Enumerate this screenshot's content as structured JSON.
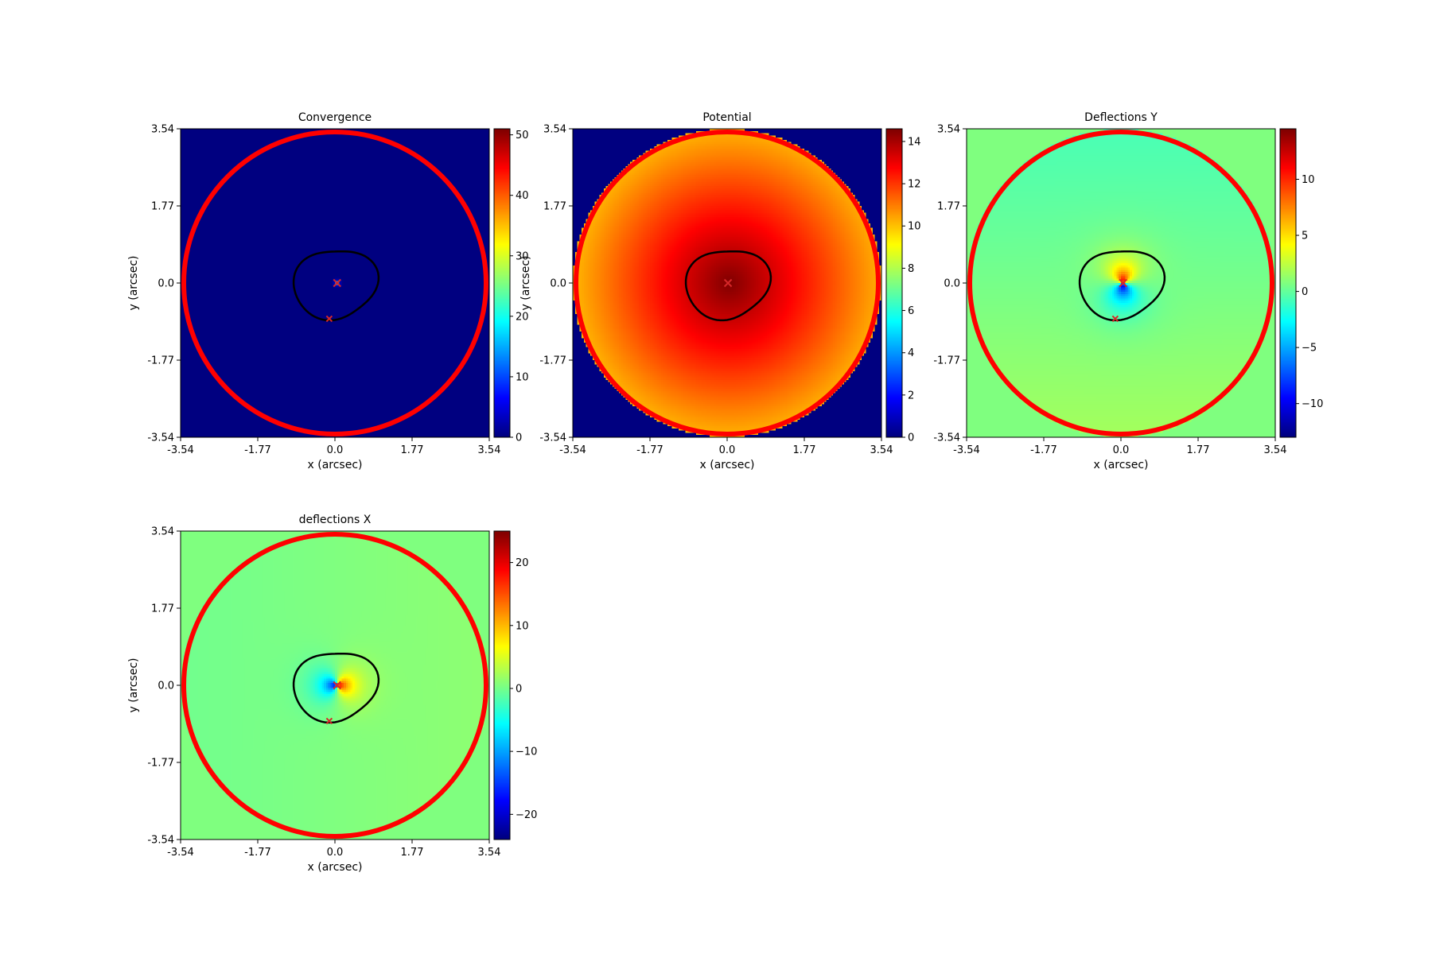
{
  "chart_data": [
    {
      "type": "heatmap",
      "title": "Convergence",
      "xlabel": "x (arcsec)",
      "ylabel": "y (arcsec)",
      "xlim": [
        -3.54,
        3.54
      ],
      "ylim": [
        -3.54,
        3.54
      ],
      "xticks": [
        "-3.54",
        "-1.77",
        "0.0",
        "1.77",
        "3.54"
      ],
      "yticks": [
        "3.54",
        "1.77",
        "0.0",
        "-1.77",
        "-3.54"
      ],
      "colorbar": {
        "min": 0,
        "max": 51,
        "ticks": [
          "0",
          "10",
          "20",
          "30",
          "40",
          "50"
        ],
        "tick_values": [
          0,
          10,
          20,
          30,
          40,
          50
        ]
      },
      "colormap": "jet",
      "field": "convergence",
      "background": "#000080",
      "markers": [
        {
          "x": 0.05,
          "y": 0.0
        },
        {
          "x": -0.13,
          "y": -0.82
        }
      ]
    },
    {
      "type": "heatmap",
      "title": "Potential",
      "xlabel": "x (arcsec)",
      "ylabel": "y (arcsec)",
      "xlim": [
        -3.54,
        3.54
      ],
      "ylim": [
        -3.54,
        3.54
      ],
      "xticks": [
        "-3.54",
        "-1.77",
        "0.0",
        "1.77",
        "3.54"
      ],
      "yticks": [
        "3.54",
        "1.77",
        "0.0",
        "-1.77",
        "-3.54"
      ],
      "colorbar": {
        "min": 0,
        "max": 14.6,
        "ticks": [
          "0",
          "2",
          "4",
          "6",
          "8",
          "10",
          "12",
          "14"
        ],
        "tick_values": [
          0,
          2,
          4,
          6,
          8,
          10,
          12,
          14
        ]
      },
      "colormap": "jet",
      "field": "potential",
      "background": "#000080",
      "markers": [
        {
          "x": 0.02,
          "y": 0.0
        }
      ]
    },
    {
      "type": "heatmap",
      "title": "Deflections Y",
      "xlabel": "x (arcsec)",
      "ylabel": "",
      "xlim": [
        -3.54,
        3.54
      ],
      "ylim": [
        -3.54,
        3.54
      ],
      "xticks": [
        "-3.54",
        "-1.77",
        "0.0",
        "1.77",
        "3.54"
      ],
      "yticks": [
        "3.54",
        "1.77",
        "0.0",
        "-1.77",
        "-3.54"
      ],
      "colorbar": {
        "min": -13,
        "max": 14.5,
        "ticks": [
          "−10",
          "−5",
          "0",
          "5",
          "10"
        ],
        "tick_values": [
          -10,
          -5,
          0,
          5,
          10
        ]
      },
      "colormap": "jet",
      "field": "deflection_y",
      "background": "#7fff7f",
      "markers": [
        {
          "x": 0.05,
          "y": 0.0
        },
        {
          "x": -0.13,
          "y": -0.82
        }
      ]
    },
    {
      "type": "heatmap",
      "title": "deflections X",
      "xlabel": "x (arcsec)",
      "ylabel": "y (arcsec)",
      "xlim": [
        -3.54,
        3.54
      ],
      "ylim": [
        -3.54,
        3.54
      ],
      "xticks": [
        "-3.54",
        "-1.77",
        "0.0",
        "1.77",
        "3.54"
      ],
      "yticks": [
        "3.54",
        "1.77",
        "0.0",
        "-1.77",
        "-3.54"
      ],
      "colorbar": {
        "min": -24,
        "max": 25,
        "ticks": [
          "−20",
          "−10",
          "0",
          "10",
          "20"
        ],
        "tick_values": [
          -20,
          -10,
          0,
          10,
          20
        ]
      },
      "colormap": "jet",
      "field": "deflection_x",
      "background": "#7fff7f",
      "markers": [
        {
          "x": 0.05,
          "y": 0.0
        },
        {
          "x": -0.13,
          "y": -0.82
        }
      ]
    }
  ],
  "colors": {
    "border_circle": "#ff0000",
    "critical_curve": "#000000",
    "marker": "#d62728"
  }
}
